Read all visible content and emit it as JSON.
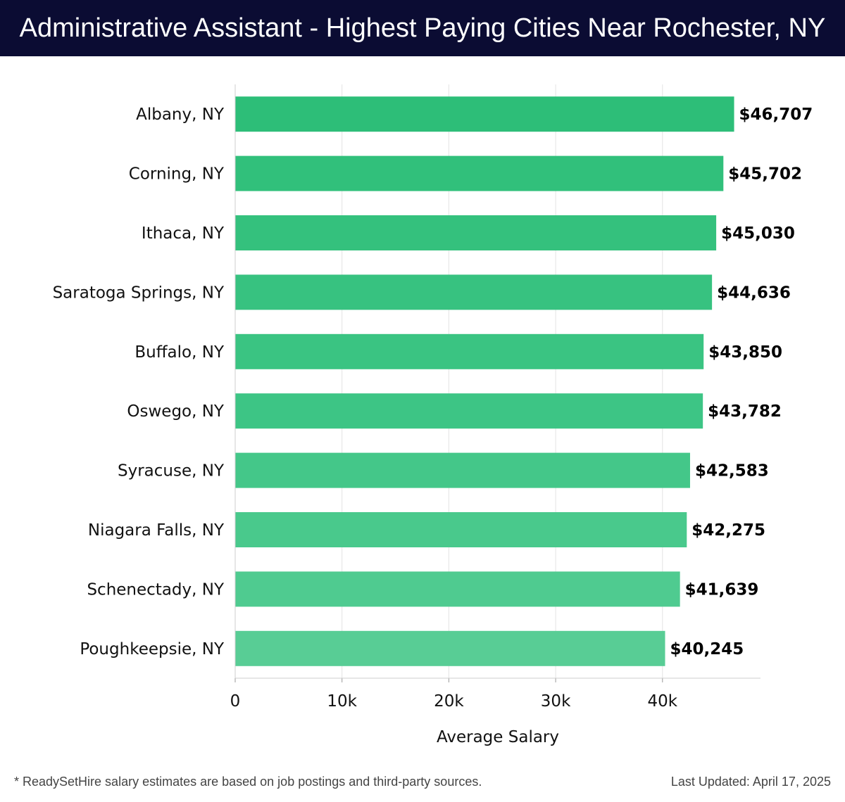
{
  "header": {
    "title": "Administrative Assistant - Highest Paying Cities Near Rochester, NY"
  },
  "chart_data": {
    "type": "bar",
    "orientation": "horizontal",
    "title": "Administrative Assistant - Highest Paying Cities Near Rochester, NY",
    "xlabel": "Average Salary",
    "ylabel": "",
    "xlim": [
      0,
      49000
    ],
    "xticks": [
      0,
      10000,
      20000,
      30000,
      40000
    ],
    "xtick_labels": [
      "0",
      "10k",
      "20k",
      "30k",
      "40k"
    ],
    "grid": true,
    "categories": [
      "Albany, NY",
      "Corning, NY",
      "Ithaca, NY",
      "Saratoga Springs, NY",
      "Buffalo, NY",
      "Oswego, NY",
      "Syracuse, NY",
      "Niagara Falls, NY",
      "Schenectady, NY",
      "Poughkeepsie, NY"
    ],
    "values": [
      46707,
      45702,
      45030,
      44636,
      43850,
      43782,
      42583,
      42275,
      41639,
      40245
    ],
    "value_labels": [
      "$46,707",
      "$45,702",
      "$45,030",
      "$44,636",
      "$43,850",
      "$43,782",
      "$42,583",
      "$42,275",
      "$41,639",
      "$40,245"
    ],
    "colors": [
      "#2dbe78",
      "#31c07b",
      "#34c17d",
      "#37c280",
      "#3ac482",
      "#3dc585",
      "#44c789",
      "#49c98c",
      "#4fcb90",
      "#58cd95"
    ]
  },
  "footer": {
    "note": "* ReadySetHire salary estimates are based on job postings and third-party sources.",
    "updated": "Last Updated: April 17, 2025"
  }
}
